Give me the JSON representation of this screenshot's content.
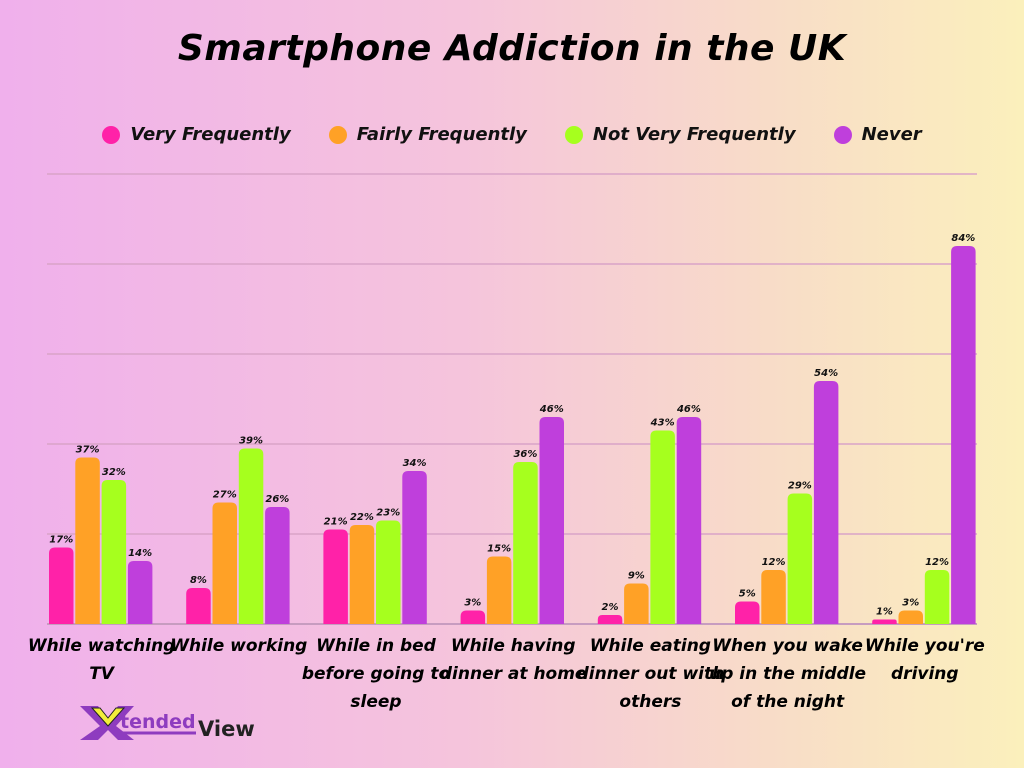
{
  "chart_data": {
    "type": "bar",
    "title": "Smartphone Addiction in the UK",
    "categories": [
      "While watching TV",
      "While working",
      "While in  bed before going to sleep",
      "While having dinner at home",
      "While eating dinner out with others",
      "When you wake up in the middle of the night",
      "While you're driving"
    ],
    "series": [
      {
        "name": "Very Frequently",
        "color": "#ff22a8",
        "values": [
          17,
          8,
          21,
          3,
          2,
          5,
          1
        ]
      },
      {
        "name": "Fairly Frequently",
        "color": "#ffa126",
        "values": [
          37,
          27,
          22,
          15,
          9,
          12,
          3
        ]
      },
      {
        "name": "Not Very Frequently",
        "color": "#a6ff1e",
        "values": [
          32,
          39,
          23,
          36,
          43,
          29,
          12
        ]
      },
      {
        "name": "Never",
        "color": "#bf3fdc",
        "values": [
          14,
          26,
          34,
          46,
          46,
          54,
          84
        ]
      }
    ],
    "value_suffix": "%",
    "ylim": [
      0,
      100
    ],
    "grid": true,
    "legend": "top",
    "data_labels": true
  },
  "logo": {
    "text_x": "X",
    "text_main": "tended",
    "text_tail": "View"
  }
}
